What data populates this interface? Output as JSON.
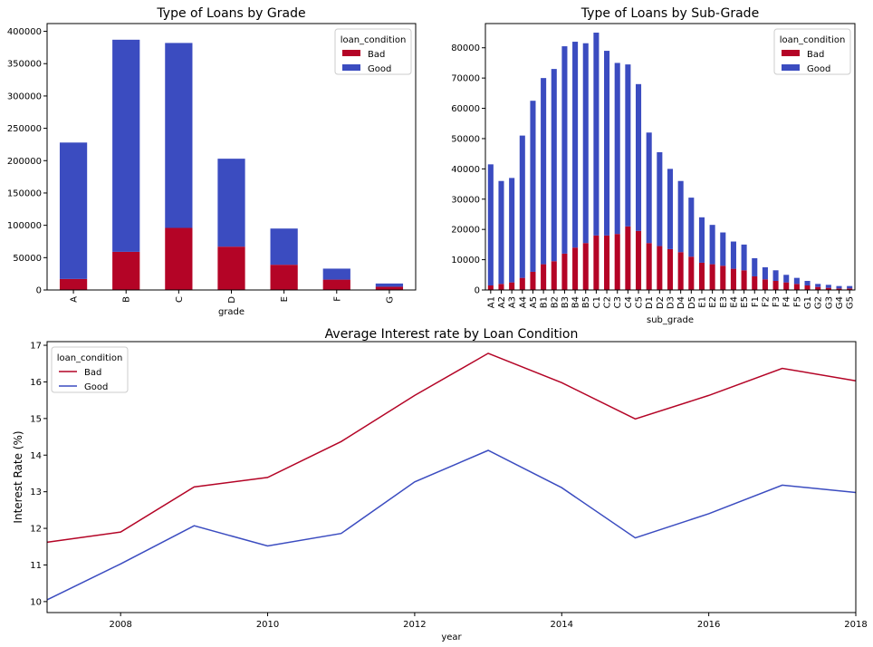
{
  "colors": {
    "bad": "#b40426",
    "good": "#3b4cc0"
  },
  "chart_data": [
    {
      "type": "bar",
      "stacked": true,
      "title": "Type of Loans by Grade",
      "xlabel": "grade",
      "ylabel": "",
      "categories": [
        "A",
        "B",
        "C",
        "D",
        "E",
        "F",
        "G"
      ],
      "series": [
        {
          "name": "Bad",
          "values": [
            17000,
            59000,
            96000,
            67000,
            39000,
            16000,
            5000
          ]
        },
        {
          "name": "Good",
          "values": [
            211000,
            328000,
            286000,
            136000,
            56000,
            17000,
            5000
          ]
        }
      ],
      "ylim": [
        0,
        412000
      ],
      "yticks": [
        0,
        50000,
        100000,
        150000,
        200000,
        250000,
        300000,
        350000,
        400000
      ],
      "legend": {
        "title": "loan_condition",
        "position": "top-right"
      },
      "grid": false
    },
    {
      "type": "bar",
      "stacked": true,
      "title": "Type of Loans by Sub-Grade",
      "xlabel": "sub_grade",
      "ylabel": "",
      "categories": [
        "A1",
        "A2",
        "A3",
        "A4",
        "A5",
        "B1",
        "B2",
        "B3",
        "B4",
        "B5",
        "C1",
        "C2",
        "C3",
        "C4",
        "C5",
        "D1",
        "D2",
        "D3",
        "D4",
        "D5",
        "E1",
        "E2",
        "E3",
        "E4",
        "E5",
        "F1",
        "F2",
        "F3",
        "F4",
        "F5",
        "G1",
        "G2",
        "G3",
        "G4",
        "G5"
      ],
      "series": [
        {
          "name": "Bad",
          "values": [
            1500,
            2000,
            2500,
            4000,
            6000,
            8500,
            9500,
            12000,
            14000,
            15500,
            18000,
            18000,
            18500,
            21000,
            19500,
            15500,
            14500,
            13500,
            12500,
            11000,
            9000,
            8500,
            8000,
            7000,
            6500,
            4500,
            3500,
            3000,
            2500,
            2000,
            1500,
            1000,
            700,
            500,
            500
          ]
        },
        {
          "name": "Good",
          "values": [
            40000,
            34000,
            34500,
            47000,
            56500,
            61500,
            63500,
            68500,
            68000,
            66000,
            67000,
            61000,
            56500,
            53500,
            48500,
            36500,
            31000,
            26500,
            23500,
            19500,
            15000,
            13000,
            11000,
            9000,
            8500,
            6000,
            4000,
            3500,
            2500,
            2000,
            1500,
            1000,
            1000,
            800,
            800
          ]
        }
      ],
      "ylim": [
        0,
        88000
      ],
      "yticks": [
        0,
        10000,
        20000,
        30000,
        40000,
        50000,
        60000,
        70000,
        80000
      ],
      "legend": {
        "title": "loan_condition",
        "position": "top-right"
      },
      "grid": false
    },
    {
      "type": "line",
      "title": "Average Interest rate by Loan Condition",
      "xlabel": "year",
      "ylabel": "Interest Rate (%)",
      "x": [
        2007,
        2008,
        2009,
        2010,
        2011,
        2012,
        2013,
        2014,
        2015,
        2016,
        2017,
        2018
      ],
      "series": [
        {
          "name": "Bad",
          "values": [
            11.62,
            11.9,
            13.13,
            13.39,
            14.37,
            15.63,
            16.78,
            15.98,
            14.99,
            15.63,
            16.37,
            16.03
          ]
        },
        {
          "name": "Good",
          "values": [
            10.05,
            11.03,
            12.07,
            11.52,
            11.86,
            13.27,
            14.13,
            13.11,
            11.74,
            12.4,
            13.18,
            12.98
          ]
        }
      ],
      "xlim": [
        2007,
        2018
      ],
      "ylim": [
        9.7,
        17.1
      ],
      "xticks": [
        2008,
        2010,
        2012,
        2014,
        2016,
        2018
      ],
      "yticks": [
        10,
        11,
        12,
        13,
        14,
        15,
        16,
        17
      ],
      "legend": {
        "title": "loan_condition",
        "position": "top-left"
      },
      "grid": false
    }
  ]
}
